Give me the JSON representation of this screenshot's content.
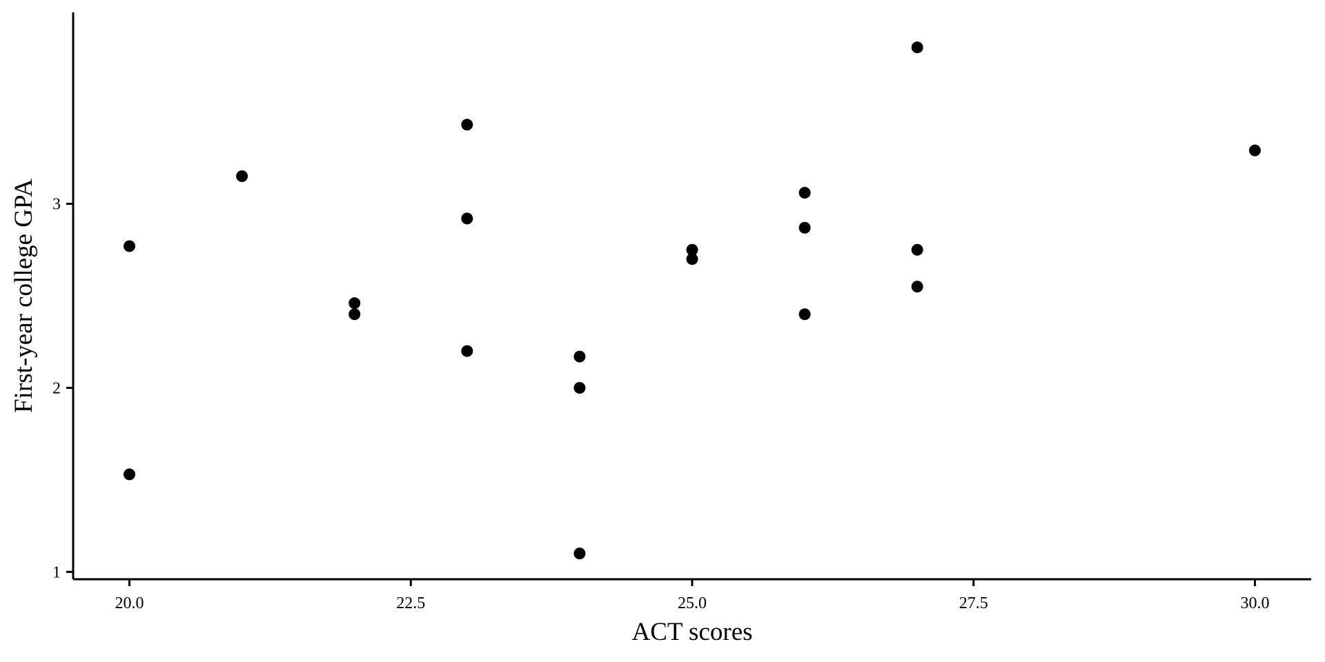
{
  "chart_data": {
    "type": "scatter",
    "xlabel": "ACT scores",
    "ylabel": "First-year college GPA",
    "xlim": [
      19.5,
      30.5
    ],
    "ylim": [
      0.96,
      4.04
    ],
    "x_ticks": [
      20.0,
      22.5,
      25.0,
      27.5,
      30.0
    ],
    "x_tick_labels": [
      "20.0",
      "22.5",
      "25.0",
      "27.5",
      "30.0"
    ],
    "y_ticks": [
      1,
      2,
      3
    ],
    "y_tick_labels": [
      "1",
      "2",
      "3"
    ],
    "grid": false,
    "legend": "none",
    "point_color": "#000000",
    "points": [
      {
        "x": 20,
        "y": 2.77
      },
      {
        "x": 20,
        "y": 1.53
      },
      {
        "x": 21,
        "y": 3.15
      },
      {
        "x": 22,
        "y": 2.46
      },
      {
        "x": 22,
        "y": 2.4
      },
      {
        "x": 23,
        "y": 3.43
      },
      {
        "x": 23,
        "y": 2.92
      },
      {
        "x": 23,
        "y": 2.2
      },
      {
        "x": 24,
        "y": 2.17
      },
      {
        "x": 24,
        "y": 2.0
      },
      {
        "x": 24,
        "y": 1.1
      },
      {
        "x": 25,
        "y": 2.75
      },
      {
        "x": 25,
        "y": 2.7
      },
      {
        "x": 26,
        "y": 3.06
      },
      {
        "x": 26,
        "y": 2.87
      },
      {
        "x": 26,
        "y": 2.4
      },
      {
        "x": 27,
        "y": 3.85
      },
      {
        "x": 27,
        "y": 2.75
      },
      {
        "x": 27,
        "y": 2.55
      },
      {
        "x": 30,
        "y": 3.29
      }
    ]
  }
}
